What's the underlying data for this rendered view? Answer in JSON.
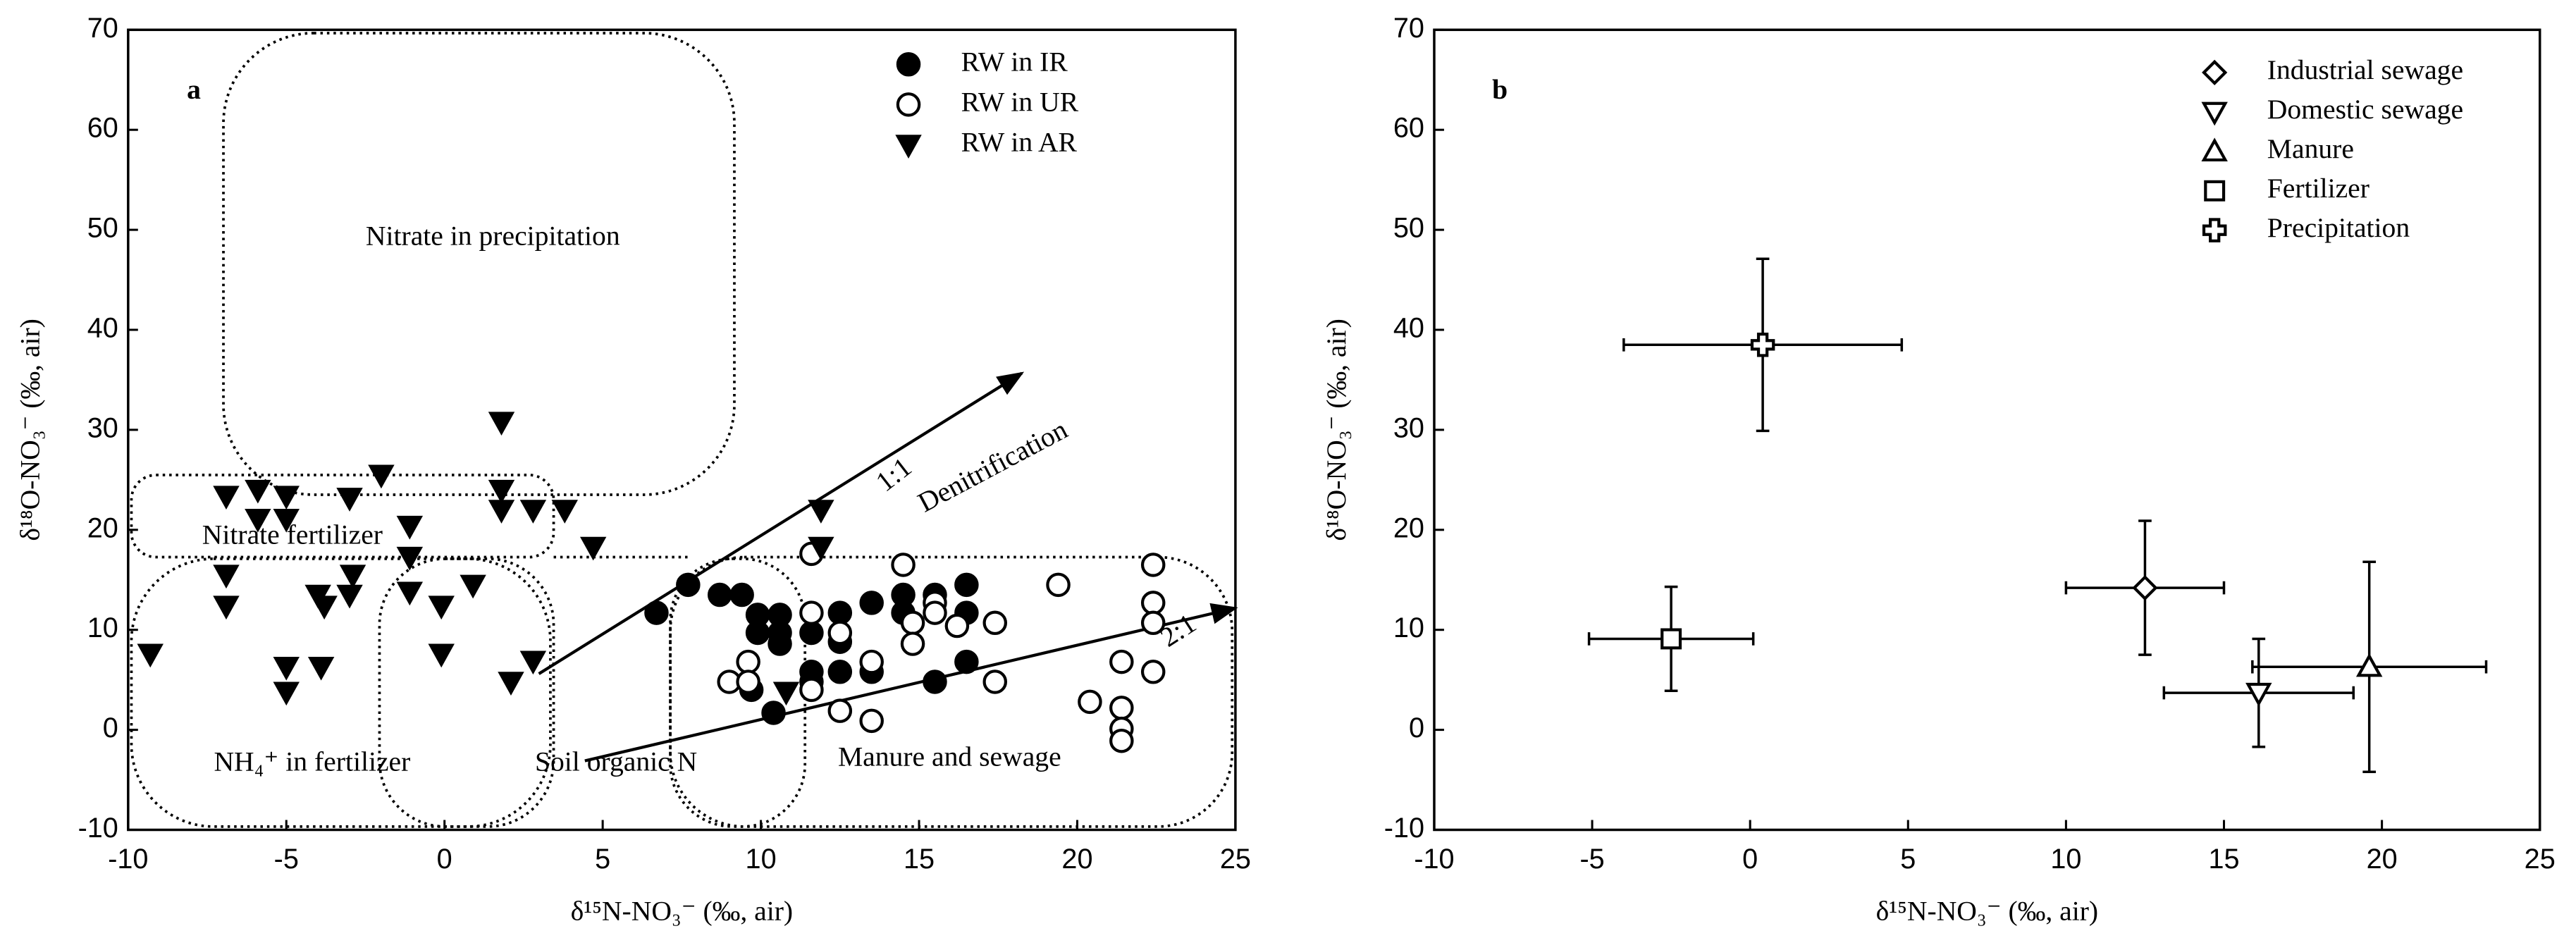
{
  "chart_data": [
    {
      "type": "scatter",
      "panel_label": "a",
      "xlabel": "δ¹⁵N-NO₃⁻ (‰, air)",
      "ylabel": "δ¹⁸O-NO₃⁻ (‰, air)",
      "xlim": [
        -10,
        25
      ],
      "ylim": [
        -10,
        70
      ],
      "xticks": [
        -10,
        -5,
        0,
        5,
        10,
        15,
        20,
        25
      ],
      "yticks": [
        -10,
        0,
        10,
        20,
        30,
        40,
        50,
        60,
        70
      ],
      "legend": "upper right",
      "annotations": [
        "Nitrate in precipitation",
        "Nitrate fertilizer",
        "NH₄⁺ in fertilizer",
        "Soil organic N",
        "Manure and sewage",
        "1:1",
        "Denitrification",
        "2:1"
      ],
      "series": [
        {
          "name": "RW in IR",
          "marker": "circle-filled",
          "color": "#000000",
          "x": [
            6.7,
            7.7,
            8.7,
            9.4,
            9.9,
            10.6,
            9.9,
            10.6,
            10.6,
            9.7,
            10.4,
            11.6,
            11.6,
            11.6,
            12.5,
            12.5,
            12.5,
            13.5,
            13.5,
            14.5,
            14.5,
            15.5,
            15.5,
            16.5,
            16.5,
            16.5
          ],
          "values": [
            11.7,
            14.5,
            13.5,
            13.5,
            11.5,
            11.5,
            9.7,
            9.7,
            8.6,
            4.0,
            1.7,
            9.7,
            5.8,
            4.8,
            11.7,
            8.8,
            5.8,
            12.7,
            5.8,
            13.5,
            11.7,
            13.5,
            4.8,
            14.5,
            11.7,
            6.8
          ]
        },
        {
          "name": "RW in UR",
          "marker": "circle-open",
          "color": "#000000",
          "x": [
            9.0,
            9.6,
            9.6,
            11.6,
            11.6,
            11.6,
            12.5,
            12.5,
            13.5,
            13.5,
            14.5,
            14.8,
            14.8,
            15.5,
            15.5,
            16.2,
            17.4,
            17.4,
            19.4,
            20.4,
            21.4,
            21.4,
            21.4,
            21.4,
            22.4,
            22.4,
            22.4,
            22.4
          ],
          "values": [
            4.8,
            6.8,
            4.8,
            17.6,
            11.7,
            4.0,
            9.7,
            1.9,
            6.8,
            0.9,
            16.5,
            10.7,
            8.6,
            12.7,
            11.7,
            10.4,
            10.7,
            4.8,
            14.5,
            2.8,
            6.8,
            2.2,
            0.1,
            -1.1,
            16.5,
            12.7,
            10.7,
            5.8
          ]
        },
        {
          "name": "RW in AR",
          "marker": "triangle-down-filled",
          "color": "#000000",
          "x": [
            -2.0,
            1.8,
            1.8,
            1.8,
            2.8,
            3.8,
            4.7,
            -6.9,
            -5.9,
            -5.0,
            -5.9,
            -5.0,
            -3.0,
            -1.1,
            -1.1,
            -6.9,
            -6.9,
            -9.3,
            -5.0,
            -5.0,
            -3.9,
            -4.0,
            -3.8,
            -3.0,
            -2.9,
            -1.1,
            -0.1,
            -0.1,
            0.9,
            2.1,
            2.8,
            11.9,
            11.9,
            10.8
          ],
          "values": [
            25.5,
            30.8,
            24.0,
            22.0,
            22.0,
            22.0,
            18.3,
            23.4,
            24.0,
            23.4,
            21.1,
            21.1,
            23.2,
            20.4,
            17.3,
            15.5,
            12.4,
            7.6,
            6.3,
            3.8,
            6.3,
            13.5,
            12.4,
            13.5,
            15.5,
            13.8,
            12.4,
            7.6,
            14.5,
            4.8,
            6.9,
            22.0,
            18.3,
            3.8
          ]
        }
      ]
    },
    {
      "type": "errorbar",
      "panel_label": "b",
      "xlabel": "δ¹⁵N-NO₃⁻ (‰, air)",
      "ylabel": "δ¹⁸O-NO₃⁻ (‰, air)",
      "xlim": [
        -10,
        25
      ],
      "ylim": [
        -10,
        70
      ],
      "xticks": [
        -10,
        -5,
        0,
        5,
        10,
        15,
        20,
        25
      ],
      "yticks": [
        -10,
        0,
        10,
        20,
        30,
        40,
        50,
        60,
        70
      ],
      "legend": "upper right",
      "series": [
        {
          "name": "Industrial sewage",
          "marker": "diamond",
          "color": "#000000",
          "x": [
            12.5
          ],
          "values": [
            14.2
          ],
          "xerr": [
            2.5
          ],
          "yerr": [
            6.7
          ]
        },
        {
          "name": "Domestic sewage",
          "marker": "triangle-down",
          "color": "#000000",
          "x": [
            16.1
          ],
          "values": [
            3.7
          ],
          "xerr": [
            3.0
          ],
          "yerr": [
            5.4
          ]
        },
        {
          "name": "Manure",
          "marker": "triangle-up",
          "color": "#000000",
          "x": [
            19.6
          ],
          "values": [
            6.3
          ],
          "xerr": [
            3.7
          ],
          "yerr": [
            10.5
          ]
        },
        {
          "name": "Fertilizer",
          "marker": "square",
          "color": "#000000",
          "x": [
            -2.5
          ],
          "values": [
            9.1
          ],
          "xerr": [
            2.6
          ],
          "yerr": [
            5.2
          ]
        },
        {
          "name": "Precipitation",
          "marker": "cross",
          "color": "#000000",
          "x": [
            0.4
          ],
          "values": [
            38.5
          ],
          "xerr": [
            4.4
          ],
          "yerr": [
            8.6
          ]
        }
      ]
    }
  ]
}
